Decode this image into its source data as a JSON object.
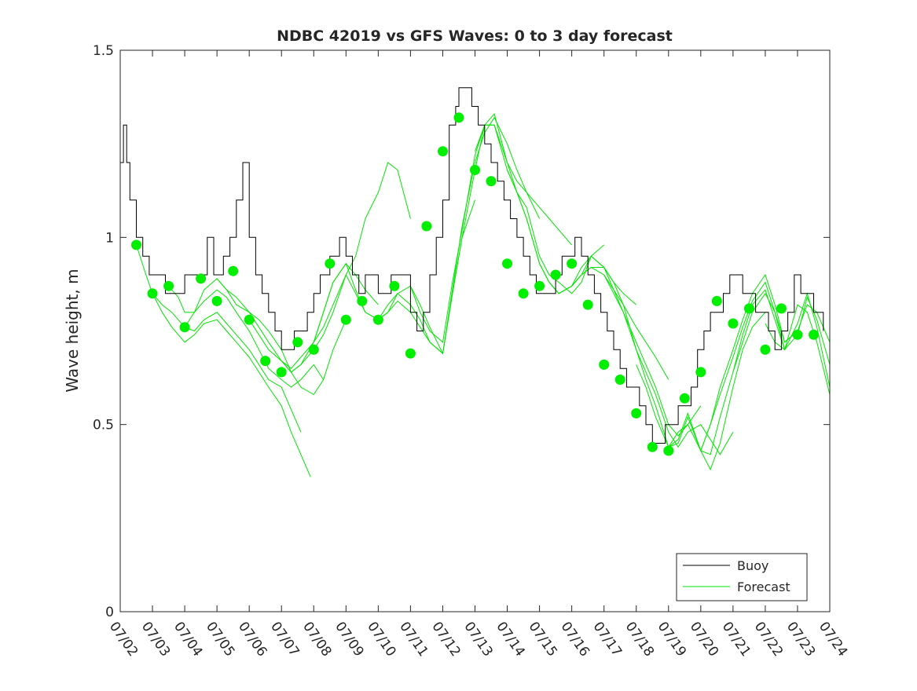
{
  "chart_data": {
    "type": "line",
    "title": "NDBC 42019 vs GFS Waves: 0 to 3 day forecast",
    "xlabel": "",
    "ylabel": "Wave height, m",
    "x_tick_labels": [
      "07/02",
      "07/03",
      "07/04",
      "07/05",
      "07/06",
      "07/07",
      "07/08",
      "07/09",
      "07/10",
      "07/11",
      "07/12",
      "07/13",
      "07/14",
      "07/15",
      "07/16",
      "07/17",
      "07/18",
      "07/19",
      "07/20",
      "07/21",
      "07/22",
      "07/23",
      "07/24"
    ],
    "y_ticks": [
      0,
      0.5,
      1,
      1.5
    ],
    "y_tick_labels": [
      "0",
      "0.5",
      "1",
      "1.5"
    ],
    "xlim": [
      0,
      22
    ],
    "ylim": [
      0,
      1.5
    ],
    "grid": false,
    "legend": {
      "position": "bottom-right",
      "entries": [
        {
          "label": "Buoy",
          "color": "#000000"
        },
        {
          "label": "Forecast",
          "color": "#00e600"
        }
      ]
    },
    "colors": {
      "buoy": "#000000",
      "forecast": "#00e600",
      "analysis_points": "#00ee00"
    },
    "series": [
      {
        "name": "Buoy",
        "x": [
          0,
          0.1,
          0.2,
          0.3,
          0.4,
          0.5,
          0.6,
          0.7,
          0.8,
          0.9,
          1.0,
          1.2,
          1.4,
          1.6,
          1.8,
          2.0,
          2.2,
          2.5,
          2.7,
          2.9,
          3.0,
          3.2,
          3.4,
          3.6,
          3.8,
          4.0,
          4.2,
          4.4,
          4.6,
          4.8,
          5.0,
          5.2,
          5.4,
          5.6,
          5.8,
          6.0,
          6.2,
          6.5,
          6.8,
          7.0,
          7.2,
          7.4,
          7.6,
          7.8,
          8.0,
          8.2,
          8.4,
          8.6,
          8.8,
          9.0,
          9.2,
          9.4,
          9.6,
          9.8,
          10.0,
          10.2,
          10.4,
          10.5,
          10.7,
          10.9,
          11.1,
          11.3,
          11.5,
          11.7,
          11.9,
          12.1,
          12.3,
          12.5,
          12.7,
          12.9,
          13.1,
          13.3,
          13.5,
          13.7,
          13.9,
          14.1,
          14.3,
          14.5,
          14.7,
          14.9,
          15.1,
          15.3,
          15.5,
          15.7,
          15.9,
          16.1,
          16.3,
          16.5,
          16.7,
          16.9,
          17.1,
          17.3,
          17.5,
          17.7,
          17.9,
          18.1,
          18.3,
          18.5,
          18.7,
          18.9,
          19.1,
          19.3,
          19.5,
          19.7,
          19.9,
          20.1,
          20.3,
          20.5,
          20.7,
          20.9,
          21.1,
          21.3,
          21.5,
          21.7,
          21.8
        ],
        "y": [
          1.2,
          1.3,
          1.2,
          1.1,
          1.1,
          1.0,
          1.0,
          0.95,
          0.95,
          0.9,
          0.9,
          0.9,
          0.85,
          0.85,
          0.85,
          0.9,
          0.9,
          0.9,
          1.0,
          0.9,
          0.9,
          0.95,
          1.0,
          1.1,
          1.2,
          1.0,
          0.9,
          0.85,
          0.8,
          0.75,
          0.7,
          0.7,
          0.75,
          0.75,
          0.8,
          0.85,
          0.9,
          0.95,
          1.0,
          0.95,
          0.9,
          0.85,
          0.9,
          0.9,
          0.85,
          0.85,
          0.9,
          0.9,
          0.9,
          0.8,
          0.75,
          0.8,
          0.9,
          1.0,
          1.1,
          1.3,
          1.35,
          1.4,
          1.4,
          1.35,
          1.3,
          1.25,
          1.2,
          1.15,
          1.1,
          1.05,
          1.0,
          0.95,
          0.9,
          0.85,
          0.85,
          0.85,
          0.9,
          0.95,
          0.95,
          1.0,
          0.95,
          0.9,
          0.85,
          0.8,
          0.75,
          0.7,
          0.65,
          0.6,
          0.6,
          0.55,
          0.5,
          0.45,
          0.45,
          0.5,
          0.5,
          0.55,
          0.55,
          0.6,
          0.7,
          0.75,
          0.8,
          0.8,
          0.85,
          0.9,
          0.9,
          0.85,
          0.85,
          0.8,
          0.8,
          0.75,
          0.7,
          0.75,
          0.8,
          0.9,
          0.85,
          0.85,
          0.8,
          0.8,
          0.75
        ]
      }
    ],
    "forecast_runs": [
      {
        "x": [
          0.5,
          0.8,
          1.0,
          1.3,
          1.6,
          2.0,
          2.3,
          2.6,
          3.0,
          3.3,
          3.6,
          4.0,
          4.3,
          4.6,
          5.0,
          5.3,
          5.6,
          5.9
        ],
        "y": [
          0.98,
          0.9,
          0.85,
          0.8,
          0.76,
          0.72,
          0.74,
          0.77,
          0.78,
          0.75,
          0.72,
          0.68,
          0.64,
          0.6,
          0.55,
          0.48,
          0.42,
          0.36
        ]
      },
      {
        "x": [
          1.0,
          1.3,
          1.6,
          2.0,
          2.3,
          2.6,
          3.0,
          3.3,
          3.6,
          4.0,
          4.3,
          4.6,
          5.0,
          5.3,
          5.6
        ],
        "y": [
          0.85,
          0.82,
          0.8,
          0.76,
          0.75,
          0.78,
          0.8,
          0.77,
          0.74,
          0.7,
          0.66,
          0.62,
          0.6,
          0.54,
          0.48
        ]
      },
      {
        "x": [
          1.5,
          1.8,
          2.0,
          2.3,
          2.6,
          3.0,
          3.3,
          3.6,
          4.0,
          4.3,
          4.6,
          5.0,
          5.3,
          5.6,
          6.0,
          6.3
        ],
        "y": [
          0.87,
          0.84,
          0.8,
          0.8,
          0.83,
          0.86,
          0.84,
          0.8,
          0.75,
          0.7,
          0.65,
          0.62,
          0.6,
          0.62,
          0.66,
          0.62
        ]
      },
      {
        "x": [
          2.0,
          2.3,
          2.6,
          3.0,
          3.3,
          3.6,
          4.0,
          4.3,
          4.6,
          5.0,
          5.3,
          5.6,
          6.0,
          6.3,
          6.6,
          7.0
        ],
        "y": [
          0.76,
          0.8,
          0.86,
          0.89,
          0.86,
          0.82,
          0.8,
          0.78,
          0.75,
          0.7,
          0.64,
          0.6,
          0.58,
          0.62,
          0.7,
          0.78
        ]
      },
      {
        "x": [
          3.0,
          3.3,
          3.6,
          4.0,
          4.3,
          4.6,
          5.0,
          5.3,
          5.6,
          6.0,
          6.3,
          6.6,
          7.0,
          7.3,
          7.6,
          8.0
        ],
        "y": [
          0.89,
          0.86,
          0.84,
          0.8,
          0.76,
          0.72,
          0.67,
          0.64,
          0.66,
          0.72,
          0.8,
          0.88,
          0.93,
          0.9,
          0.86,
          0.82
        ]
      },
      {
        "x": [
          4.0,
          4.3,
          4.6,
          5.0,
          5.3,
          5.6,
          6.0,
          6.3,
          6.6,
          7.0,
          7.3,
          7.6,
          8.0,
          8.3,
          8.6,
          9.0
        ],
        "y": [
          0.78,
          0.74,
          0.7,
          0.67,
          0.65,
          0.68,
          0.72,
          0.76,
          0.82,
          0.9,
          0.95,
          1.05,
          1.12,
          1.2,
          1.18,
          1.05
        ]
      },
      {
        "x": [
          5.0,
          5.3,
          5.6,
          6.0,
          6.3,
          6.6,
          7.0,
          7.3,
          7.6,
          8.0,
          8.3,
          8.6,
          9.0,
          9.3,
          9.6,
          10.0
        ],
        "y": [
          0.67,
          0.64,
          0.66,
          0.7,
          0.74,
          0.8,
          0.9,
          0.85,
          0.8,
          0.78,
          0.8,
          0.83,
          0.8,
          0.76,
          0.72,
          0.69
        ]
      },
      {
        "x": [
          6.0,
          6.3,
          6.6,
          7.0,
          7.3,
          7.6,
          8.0,
          8.3,
          8.6,
          9.0,
          9.3,
          9.6,
          10.0,
          10.3,
          10.6,
          11.0
        ],
        "y": [
          0.72,
          0.8,
          0.88,
          0.93,
          0.86,
          0.8,
          0.78,
          0.82,
          0.85,
          0.82,
          0.78,
          0.72,
          0.69,
          0.85,
          1.0,
          1.1
        ]
      },
      {
        "x": [
          8.0,
          8.3,
          8.6,
          9.0,
          9.3,
          9.6,
          10.0,
          10.3,
          10.6,
          11.0,
          11.3,
          11.6,
          12.0,
          12.3,
          12.6,
          13.0
        ],
        "y": [
          0.78,
          0.8,
          0.85,
          0.87,
          0.82,
          0.76,
          0.69,
          0.86,
          1.03,
          1.2,
          1.28,
          1.32,
          1.25,
          1.18,
          1.12,
          1.05
        ]
      },
      {
        "x": [
          9.0,
          9.3,
          9.6,
          10.0,
          10.3,
          10.6,
          11.0,
          11.3,
          11.6,
          12.0,
          12.3,
          12.6,
          13.0,
          13.3,
          13.6,
          14.0
        ],
        "y": [
          0.87,
          0.8,
          0.75,
          0.72,
          0.88,
          1.02,
          1.22,
          1.3,
          1.3,
          1.2,
          1.15,
          1.12,
          1.08,
          1.05,
          1.02,
          0.98
        ]
      },
      {
        "x": [
          10.0,
          10.3,
          10.6,
          11.0,
          11.3,
          11.6,
          12.0,
          12.3,
          12.6,
          13.0,
          13.3,
          13.6,
          14.0,
          14.3,
          14.6,
          15.0
        ],
        "y": [
          0.69,
          0.85,
          1.0,
          1.18,
          1.3,
          1.33,
          1.2,
          1.12,
          1.08,
          0.95,
          0.9,
          0.88,
          0.85,
          0.88,
          0.95,
          0.98
        ]
      },
      {
        "x": [
          11.0,
          11.3,
          11.6,
          12.0,
          12.3,
          12.6,
          13.0,
          13.3,
          13.6,
          14.0,
          14.3,
          14.6,
          15.0,
          15.3,
          15.6,
          16.0
        ],
        "y": [
          1.23,
          1.3,
          1.3,
          1.18,
          1.12,
          1.05,
          0.93,
          0.88,
          0.85,
          0.87,
          0.9,
          0.95,
          0.92,
          0.88,
          0.85,
          0.82
        ]
      },
      {
        "x": [
          12.0,
          12.3,
          12.6,
          13.0,
          13.3,
          13.6,
          14.0,
          14.3,
          14.6,
          15.0,
          15.3,
          15.6,
          16.0,
          16.3,
          16.6,
          17.0
        ],
        "y": [
          1.18,
          1.12,
          1.05,
          0.93,
          0.88,
          0.85,
          0.87,
          0.92,
          0.95,
          0.92,
          0.88,
          0.82,
          0.76,
          0.72,
          0.68,
          0.62
        ]
      },
      {
        "x": [
          13.0,
          13.3,
          13.6,
          14.0,
          14.3,
          14.6,
          15.0,
          15.3,
          15.6,
          16.0,
          16.3,
          16.6,
          17.0,
          17.3,
          17.6,
          18.0
        ],
        "y": [
          0.93,
          0.88,
          0.85,
          0.87,
          0.9,
          0.92,
          0.9,
          0.85,
          0.8,
          0.72,
          0.66,
          0.6,
          0.5,
          0.47,
          0.5,
          0.55
        ]
      },
      {
        "x": [
          14.0,
          14.3,
          14.6,
          15.0,
          15.3,
          15.6,
          16.0,
          16.3,
          16.6,
          17.0,
          17.3,
          17.6,
          18.0,
          18.3,
          18.6,
          19.0
        ],
        "y": [
          0.87,
          0.9,
          0.92,
          0.92,
          0.86,
          0.8,
          0.7,
          0.64,
          0.58,
          0.48,
          0.44,
          0.48,
          0.5,
          0.46,
          0.42,
          0.48
        ]
      },
      {
        "x": [
          15.0,
          15.3,
          15.6,
          16.0,
          16.3,
          16.6,
          17.0,
          17.3,
          17.6,
          18.0,
          18.3,
          18.6,
          19.0,
          19.3,
          19.6,
          20.0
        ],
        "y": [
          0.9,
          0.86,
          0.82,
          0.7,
          0.62,
          0.55,
          0.44,
          0.45,
          0.52,
          0.43,
          0.38,
          0.45,
          0.6,
          0.7,
          0.76,
          0.8
        ]
      },
      {
        "x": [
          16.0,
          16.3,
          16.6,
          17.0,
          17.3,
          17.6,
          18.0,
          18.3,
          18.6,
          19.0,
          19.3,
          19.6,
          20.0,
          20.3,
          20.6,
          21.0
        ],
        "y": [
          0.66,
          0.6,
          0.52,
          0.44,
          0.46,
          0.53,
          0.43,
          0.42,
          0.52,
          0.64,
          0.72,
          0.8,
          0.85,
          0.8,
          0.72,
          0.75
        ]
      },
      {
        "x": [
          17.0,
          17.3,
          17.6,
          18.0,
          18.3,
          18.6,
          19.0,
          19.3,
          19.6,
          20.0,
          20.3,
          20.6,
          21.0,
          21.3,
          21.6,
          22.0
        ],
        "y": [
          0.44,
          0.48,
          0.5,
          0.43,
          0.5,
          0.6,
          0.7,
          0.78,
          0.85,
          0.9,
          0.82,
          0.72,
          0.75,
          0.82,
          0.8,
          0.72
        ]
      },
      {
        "x": [
          18.0,
          18.3,
          18.6,
          19.0,
          19.3,
          19.6,
          20.0,
          20.3,
          20.6,
          21.0,
          21.3,
          21.6,
          22.0
        ],
        "y": [
          0.43,
          0.5,
          0.58,
          0.68,
          0.76,
          0.83,
          0.88,
          0.8,
          0.7,
          0.74,
          0.84,
          0.78,
          0.66
        ]
      },
      {
        "x": [
          19.0,
          19.3,
          19.6,
          20.0,
          20.3,
          20.6,
          21.0,
          21.3,
          21.6,
          22.0
        ],
        "y": [
          0.64,
          0.74,
          0.82,
          0.86,
          0.78,
          0.7,
          0.77,
          0.85,
          0.76,
          0.6
        ]
      },
      {
        "x": [
          20.0,
          20.3,
          20.6,
          21.0,
          21.3,
          21.6,
          22.0
        ],
        "y": [
          0.77,
          0.72,
          0.7,
          0.82,
          0.8,
          0.72,
          0.58
        ]
      }
    ],
    "analysis_points": {
      "x": [
        0.5,
        1.0,
        1.5,
        2.0,
        2.5,
        3.0,
        3.5,
        4.0,
        4.5,
        5.0,
        5.5,
        6.0,
        6.5,
        7.0,
        7.5,
        8.0,
        8.5,
        9.0,
        9.5,
        10.0,
        10.5,
        11.0,
        11.5,
        12.0,
        12.5,
        13.0,
        13.5,
        14.0,
        14.5,
        15.0,
        15.5,
        16.0,
        16.5,
        17.0,
        17.5,
        18.0,
        18.5,
        19.0,
        19.5,
        20.0,
        20.5,
        21.0,
        21.5
      ],
      "y": [
        0.98,
        0.85,
        0.87,
        0.76,
        0.89,
        0.83,
        0.91,
        0.78,
        0.67,
        0.64,
        0.72,
        0.7,
        0.93,
        0.78,
        0.83,
        0.78,
        0.87,
        0.69,
        1.03,
        1.23,
        1.32,
        1.18,
        1.15,
        0.93,
        0.85,
        0.87,
        0.9,
        0.93,
        0.82,
        0.66,
        0.62,
        0.53,
        0.44,
        0.43,
        0.57,
        0.64,
        0.83,
        0.77,
        0.81,
        0.7,
        0.81,
        0.74,
        0.74
      ]
    }
  }
}
